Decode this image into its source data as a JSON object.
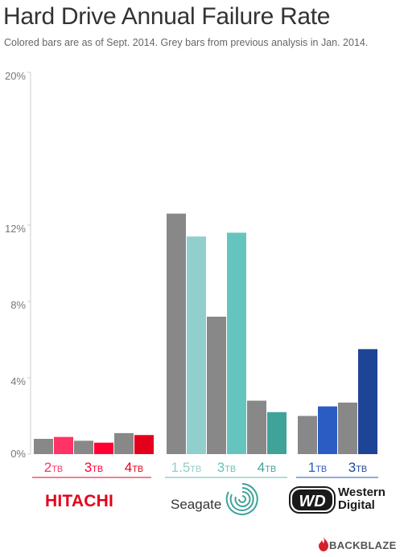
{
  "title": "Hard Drive Annual Failure Rate",
  "subtitle": "Colored bars are as of Sept. 2014. Grey bars from previous analysis in Jan. 2014.",
  "chart_data": {
    "type": "bar",
    "ylim": [
      0,
      20
    ],
    "yticks": [
      {
        "value": 0,
        "label": "0%"
      },
      {
        "value": 4,
        "label": "4%"
      },
      {
        "value": 8,
        "label": "8%"
      },
      {
        "value": 12,
        "label": "12%"
      },
      {
        "value": 20,
        "label": "20%"
      }
    ],
    "series": [
      {
        "name": "Jan. 2014",
        "color": "#888888"
      },
      {
        "name": "Sept. 2014",
        "color": "colored"
      }
    ],
    "groups": [
      {
        "brand": "HITACHI",
        "underline_color": "#e3001b",
        "categories": [
          {
            "size": "2",
            "unit": "TB",
            "jan": 0.8,
            "sep": 0.9,
            "color": "#ff3366"
          },
          {
            "size": "3",
            "unit": "TB",
            "jan": 0.7,
            "sep": 0.6,
            "color": "#ff0033"
          },
          {
            "size": "4",
            "unit": "TB",
            "jan": 1.1,
            "sep": 1.0,
            "color": "#e3001b"
          }
        ]
      },
      {
        "brand": "Seagate",
        "underline_color": "#5fbdb5",
        "categories": [
          {
            "size": "1.5",
            "unit": "TB",
            "jan": 12.6,
            "sep": 11.4,
            "color": "#90cfcc"
          },
          {
            "size": "3",
            "unit": "TB",
            "jan": 7.2,
            "sep": 11.6,
            "color": "#66c4bf"
          },
          {
            "size": "4",
            "unit": "TB",
            "jan": 2.8,
            "sep": 2.2,
            "color": "#3fa39a"
          }
        ]
      },
      {
        "brand": "Western Digital",
        "underline_color": "#2255aa",
        "categories": [
          {
            "size": "1",
            "unit": "TB",
            "jan": 2.0,
            "sep": 2.5,
            "color": "#2a5cc4"
          },
          {
            "size": "3",
            "unit": "TB",
            "jan": 2.7,
            "sep": 5.5,
            "color": "#1e4496"
          }
        ]
      }
    ]
  },
  "brands": {
    "hitachi": "HITACHI",
    "seagate": "Seagate",
    "wd_mark": "WD",
    "wd_line1": "Western",
    "wd_line2": "Digital",
    "backblaze": "BACKBLAZE"
  },
  "colors": {
    "hitachi_red": "#e3001b",
    "seagate_teal": "#5fbdb5",
    "wd_blue": "#1e4496",
    "grey": "#888888"
  }
}
